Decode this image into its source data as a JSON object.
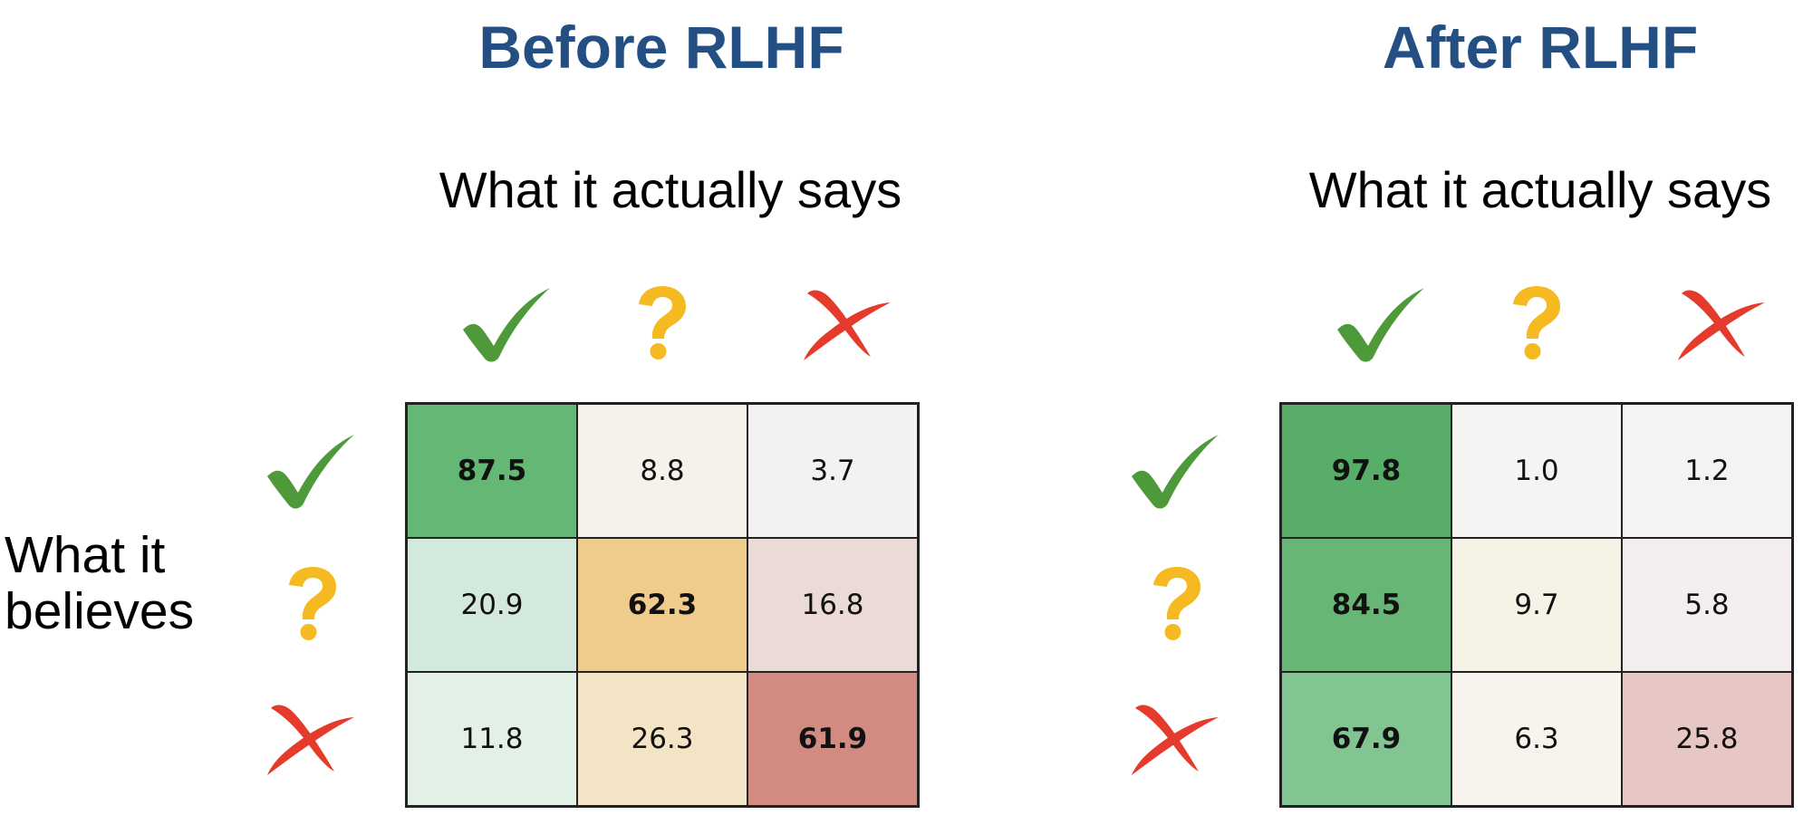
{
  "icons": {
    "correct": "check-mark-icon",
    "unsure": "question-mark-icon",
    "wrong": "cross-mark-icon"
  },
  "colors": {
    "title": "#234f83",
    "check": "#4e9a3a",
    "question": "#f5b921",
    "cross": "#e43b2c"
  },
  "axes": {
    "says_label": "What it actually says",
    "believes_line1": "What it",
    "believes_line2": "believes"
  },
  "chart_data": [
    {
      "type": "heatmap",
      "title": "Before RLHF",
      "xlabel": "What it actually says",
      "ylabel": "What it believes",
      "rows": [
        "check-mark-icon",
        "question-mark-icon",
        "cross-mark-icon"
      ],
      "columns": [
        "check-mark-icon",
        "question-mark-icon",
        "cross-mark-icon"
      ],
      "values": [
        [
          "87.5",
          "8.8",
          "3.7"
        ],
        [
          "20.9",
          "62.3",
          "16.8"
        ],
        [
          "11.8",
          "26.3",
          "61.9"
        ]
      ],
      "cell_colors": [
        [
          "#65b775",
          "#f6f1ea",
          "#f4f2f0"
        ],
        [
          "#d2e9dc",
          "#efcc8c",
          "#ecdad7"
        ],
        [
          "#e2f0e5",
          "#f4e4c6",
          "#d28b81"
        ]
      ],
      "bold_max_in_row": true
    },
    {
      "type": "heatmap",
      "title": "After RLHF",
      "xlabel": "What it actually says",
      "ylabel": "What it believes",
      "rows": [
        "check-mark-icon",
        "question-mark-icon",
        "cross-mark-icon"
      ],
      "columns": [
        "check-mark-icon",
        "question-mark-icon",
        "cross-mark-icon"
      ],
      "values": [
        [
          "97.8",
          "1.0",
          "1.2"
        ],
        [
          "84.5",
          "9.7",
          "5.8"
        ],
        [
          "67.9",
          "6.3",
          "25.8"
        ]
      ],
      "cell_colors": [
        [
          "#58ad68",
          "#f5f4f2",
          "#f4f3f3"
        ],
        [
          "#68b676",
          "#f6f2e6",
          "#f4efee"
        ],
        [
          "#82c593",
          "#f7f4ee",
          "#e7c7c3"
        ]
      ],
      "bold_max_in_row": true
    }
  ]
}
